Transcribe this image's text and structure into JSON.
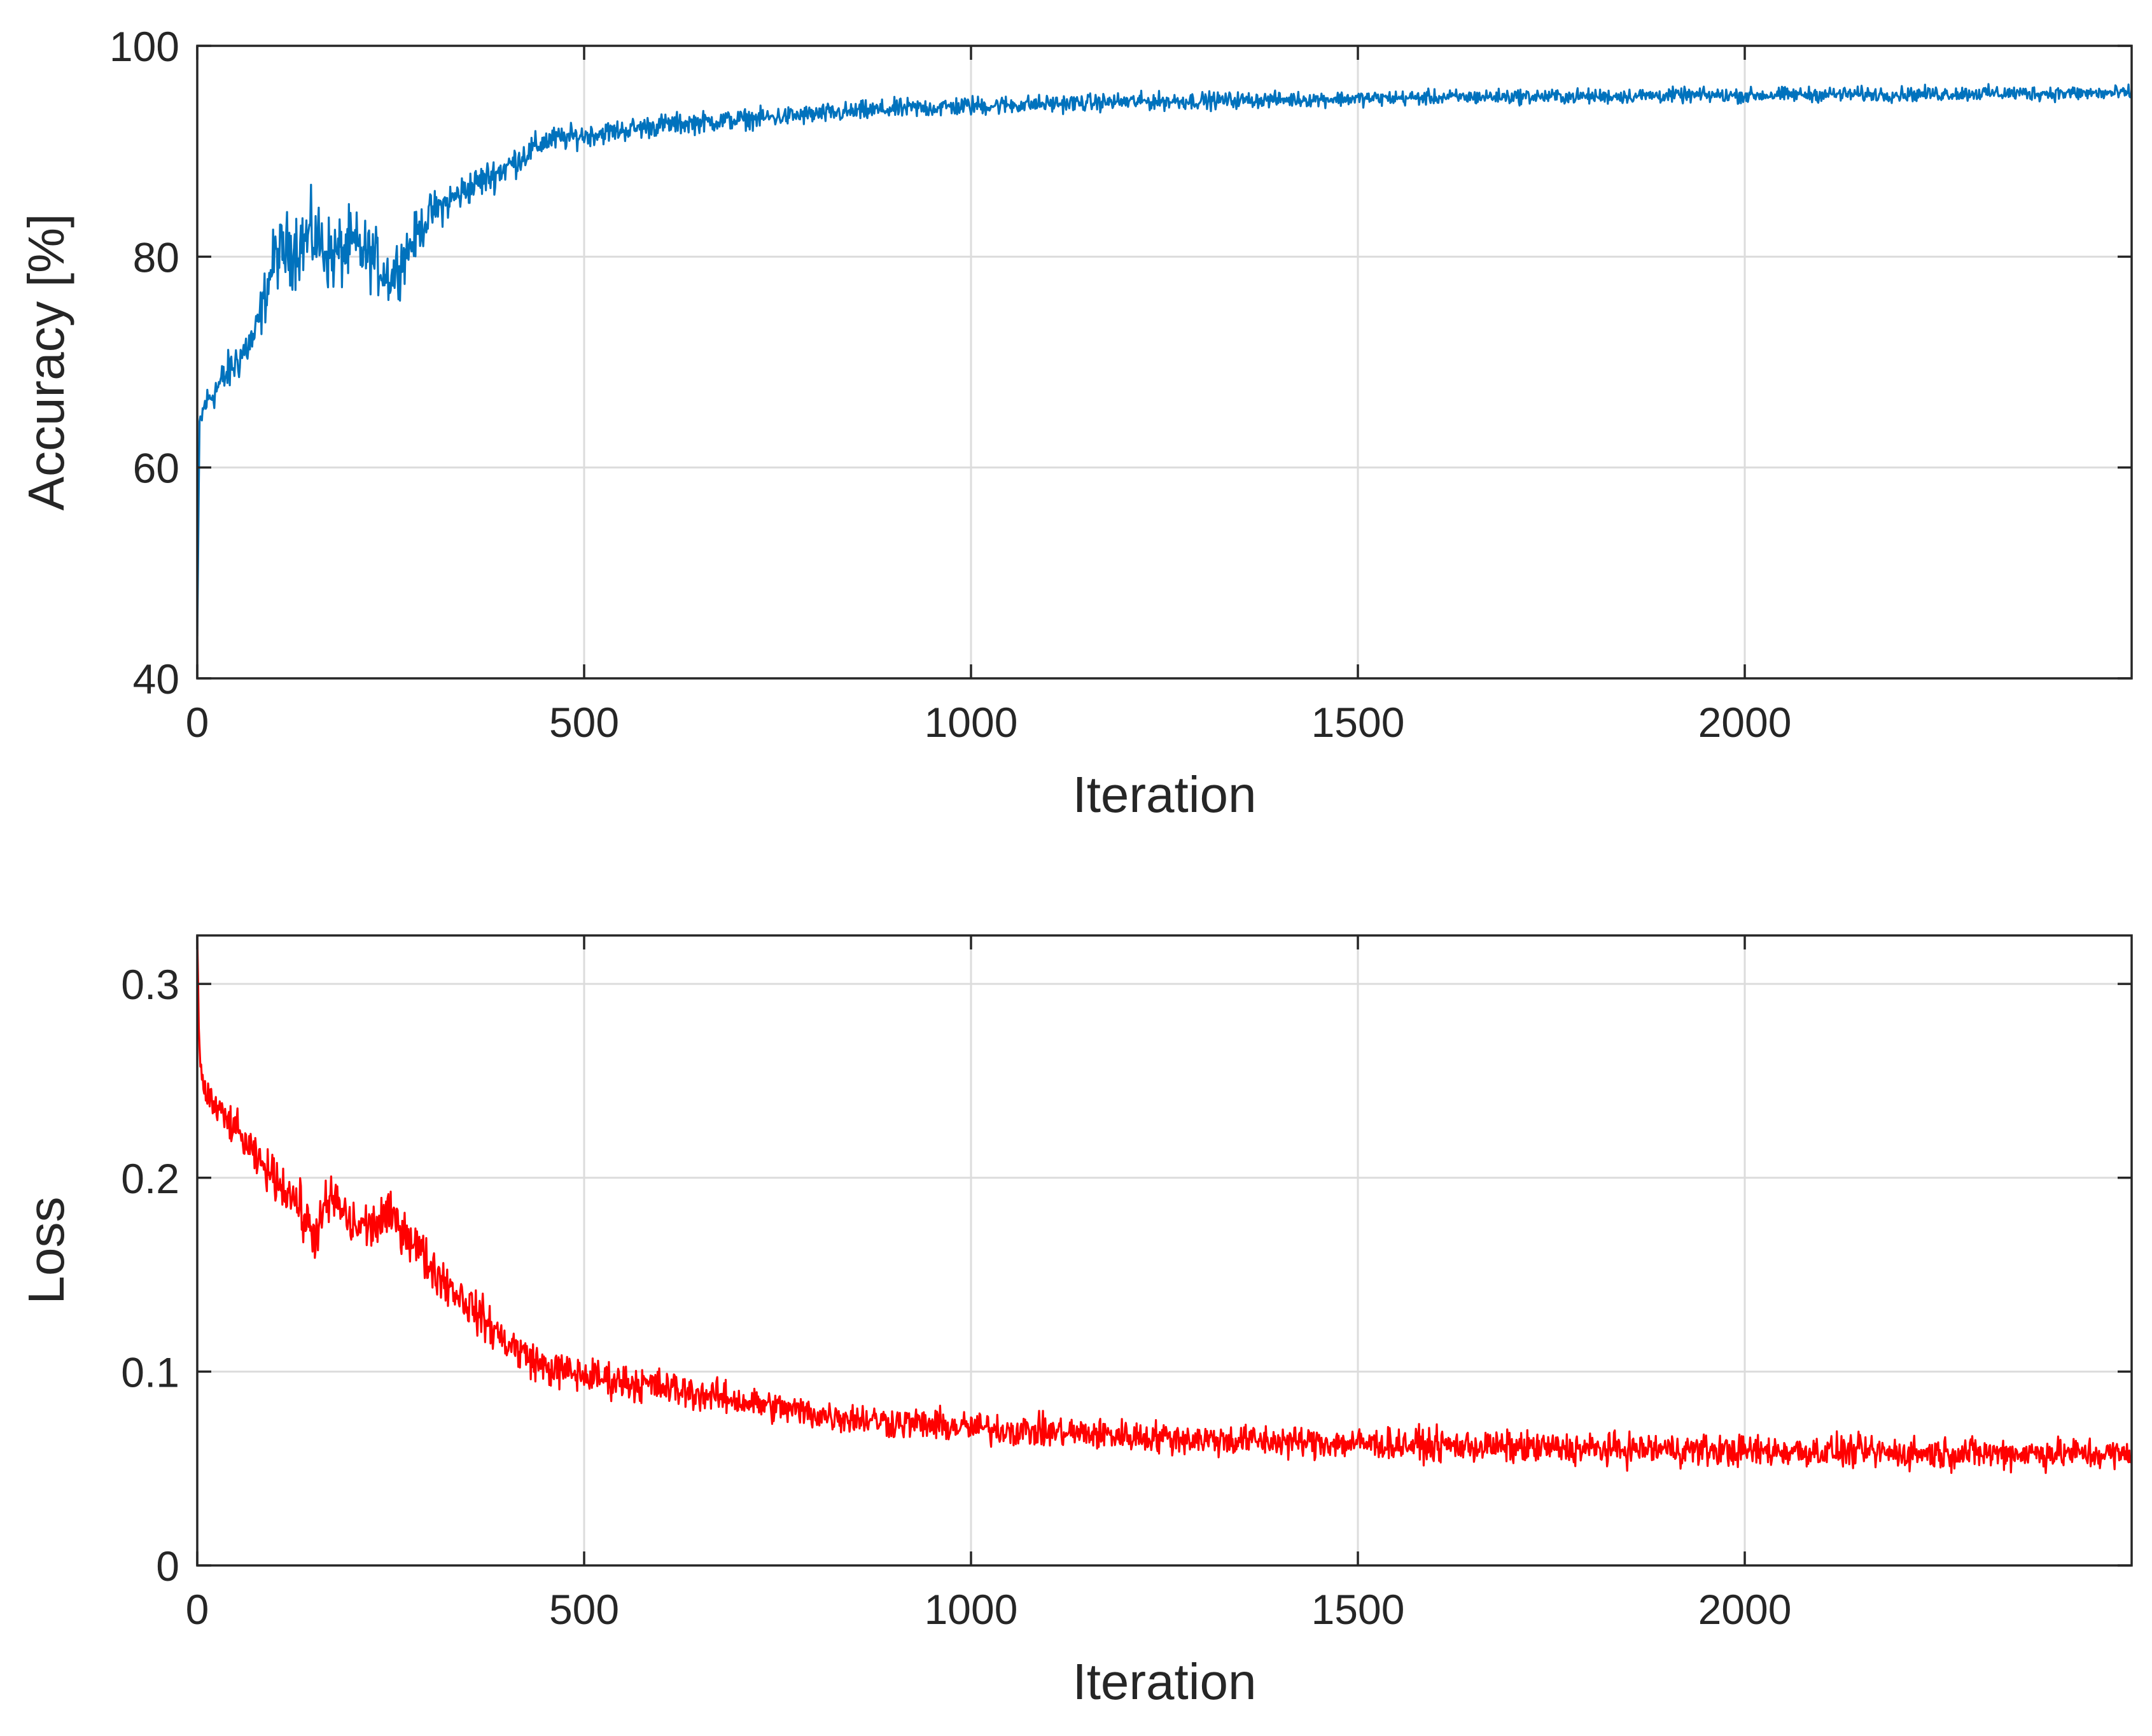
{
  "colors": {
    "accuracy": "#0072bd",
    "loss": "#ff0000",
    "grid": "#dcdcdc",
    "axes": "#262626"
  },
  "chart_data": [
    {
      "type": "line",
      "title": "",
      "xlabel": "Iteration",
      "ylabel": "Accuracy [%]",
      "xlim": [
        0,
        2500
      ],
      "ylim": [
        40,
        100
      ],
      "xticks": [
        0,
        500,
        1000,
        1500,
        2000
      ],
      "xtick_labels": [
        "0",
        "500",
        "1000",
        "1500",
        "2000"
      ],
      "yticks": [
        40,
        60,
        80,
        100
      ],
      "ytick_labels": [
        "40",
        "60",
        "80",
        "100"
      ],
      "grid": true,
      "series": [
        {
          "color": "#0072bd",
          "x": [
            0,
            3,
            10,
            25,
            50,
            75,
            100,
            125,
            150,
            175,
            200,
            225,
            250,
            275,
            300,
            350,
            400,
            450,
            500,
            600,
            700,
            800,
            900,
            1000,
            1100,
            1200,
            1300,
            1400,
            1500,
            1600,
            1700,
            1800,
            1900,
            2000,
            2100,
            2200,
            2300,
            2400,
            2500
          ],
          "y": [
            44,
            64,
            66,
            67.5,
            70,
            72.5,
            80,
            81,
            82,
            80,
            81,
            80,
            78,
            81,
            84,
            86.5,
            88.5,
            91,
            91.5,
            92.5,
            93,
            93.5,
            94,
            94.3,
            94.5,
            94.7,
            94.8,
            94.9,
            95,
            95.1,
            95.2,
            95.2,
            95.3,
            95.3,
            95.4,
            95.4,
            95.5,
            95.5,
            95.5
          ],
          "noise": [
            0,
            1.2,
            1.3,
            1.5,
            1.8,
            1.8,
            2.6,
            3.2,
            3.2,
            3.0,
            3.0,
            2.6,
            2.4,
            2.0,
            1.6,
            1.4,
            1.3,
            1.1,
            0.9,
            0.9,
            0.8,
            0.8,
            0.8,
            0.8,
            0.7,
            0.7,
            0.7,
            0.6,
            0.6,
            0.6,
            0.6,
            0.6,
            0.6,
            0.6,
            0.6,
            0.6,
            0.6,
            0.6,
            0.6
          ]
        }
      ]
    },
    {
      "type": "line",
      "title": "",
      "xlabel": "Iteration",
      "ylabel": "Loss",
      "xlim": [
        0,
        2500
      ],
      "ylim": [
        0,
        0.325
      ],
      "xticks": [
        0,
        500,
        1000,
        1500,
        2000
      ],
      "xtick_labels": [
        "0",
        "500",
        "1000",
        "1500",
        "2000"
      ],
      "yticks": [
        0,
        0.1,
        0.2,
        0.3
      ],
      "ytick_labels": [
        "0",
        "0.1",
        "0.2",
        "0.3"
      ],
      "grid": true,
      "series": [
        {
          "color": "#ff0000",
          "x": [
            0,
            3,
            10,
            25,
            50,
            75,
            100,
            125,
            150,
            175,
            200,
            225,
            250,
            275,
            300,
            350,
            400,
            450,
            500,
            600,
            700,
            800,
            900,
            1000,
            1100,
            1200,
            1300,
            1400,
            1500,
            1600,
            1700,
            1800,
            1900,
            2000,
            2100,
            2200,
            2300,
            2400,
            2500
          ],
          "y": [
            0.325,
            0.26,
            0.245,
            0.235,
            0.225,
            0.21,
            0.2,
            0.19,
            0.17,
            0.19,
            0.175,
            0.175,
            0.18,
            0.17,
            0.155,
            0.135,
            0.115,
            0.102,
            0.098,
            0.092,
            0.085,
            0.078,
            0.074,
            0.071,
            0.069,
            0.067,
            0.065,
            0.064,
            0.063,
            0.062,
            0.061,
            0.06,
            0.06,
            0.059,
            0.059,
            0.058,
            0.058,
            0.058,
            0.057
          ],
          "noise": [
            0,
            0.007,
            0.008,
            0.008,
            0.008,
            0.008,
            0.009,
            0.011,
            0.012,
            0.012,
            0.011,
            0.011,
            0.01,
            0.01,
            0.01,
            0.009,
            0.009,
            0.008,
            0.008,
            0.008,
            0.007,
            0.007,
            0.007,
            0.007,
            0.007,
            0.007,
            0.007,
            0.007,
            0.007,
            0.007,
            0.007,
            0.007,
            0.007,
            0.007,
            0.007,
            0.007,
            0.007,
            0.007,
            0.007
          ]
        }
      ]
    }
  ]
}
